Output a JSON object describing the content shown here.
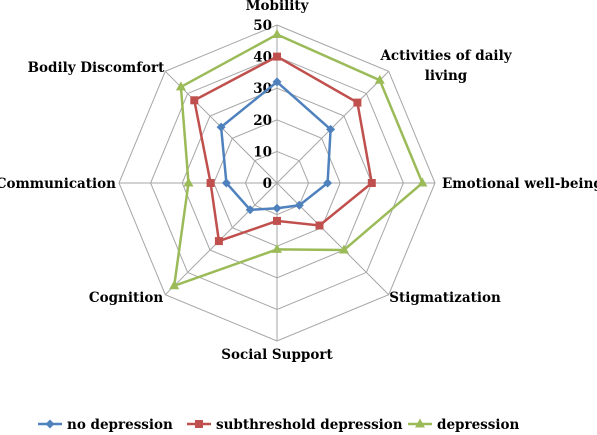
{
  "chart_data": {
    "type": "radar",
    "axes": [
      [
        "Mobility"
      ],
      [
        "Activities of daily",
        "living"
      ],
      [
        "Emotional well-being"
      ],
      [
        "Stigmatization"
      ],
      [
        "Social Support"
      ],
      [
        "Cognition"
      ],
      [
        "Communication"
      ],
      [
        "Bodily Discomfort"
      ]
    ],
    "rlim": [
      0,
      50
    ],
    "ticks": [
      0,
      10,
      20,
      30,
      40,
      50
    ],
    "grid": true,
    "legend_position": "bottom",
    "series": [
      {
        "name": "no depression",
        "color": "#4f81bd",
        "marker": "diamond",
        "values": [
          32,
          24,
          16,
          10,
          8,
          12,
          16,
          25
        ]
      },
      {
        "name": "subthreshold depression",
        "color": "#c0504d",
        "marker": "square",
        "values": [
          40,
          36,
          30,
          19,
          12,
          26,
          21,
          37
        ]
      },
      {
        "name": "depression",
        "color": "#9bbb59",
        "marker": "triangle",
        "values": [
          47,
          46,
          46,
          30,
          21,
          46,
          28,
          43
        ]
      }
    ]
  }
}
